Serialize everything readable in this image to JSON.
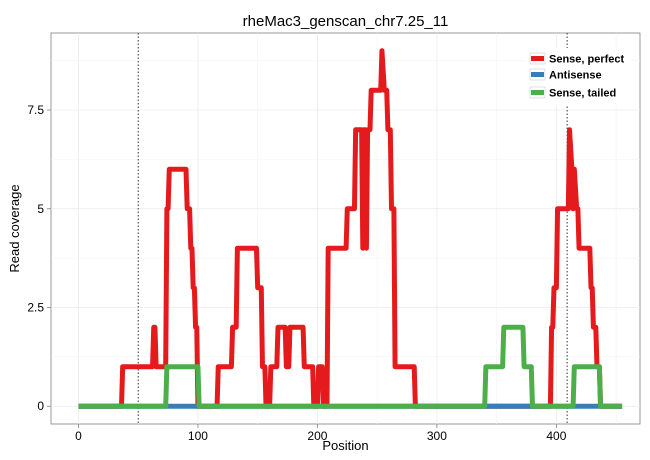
{
  "chart_data": {
    "type": "line",
    "title": "rheMac3_genscan_chr7.25_11",
    "xlabel": "Position",
    "ylabel": "Read coverage",
    "xlim": [
      -23,
      470
    ],
    "ylim": [
      -0.45,
      9.45
    ],
    "x_ticks": [
      0,
      100,
      200,
      300,
      400
    ],
    "x_tick_labels": [
      "0",
      "100",
      "200",
      "300",
      "400"
    ],
    "y_ticks": [
      0,
      2.5,
      5,
      7.5
    ],
    "y_tick_labels": [
      "0",
      "2.5",
      "5",
      "7.5"
    ],
    "grid": true,
    "legend_position": "top-right",
    "vlines": [
      50,
      409
    ],
    "series": [
      {
        "name": "Sense, perfect",
        "color": "#E41A1C",
        "points": [
          [
            0,
            0
          ],
          [
            36,
            0
          ],
          [
            37,
            1
          ],
          [
            62,
            1
          ],
          [
            63,
            2
          ],
          [
            64,
            2
          ],
          [
            65,
            1
          ],
          [
            73,
            1
          ],
          [
            74,
            5
          ],
          [
            75,
            5
          ],
          [
            76,
            6
          ],
          [
            90,
            6
          ],
          [
            91,
            5
          ],
          [
            93,
            5
          ],
          [
            94,
            4
          ],
          [
            95,
            4
          ],
          [
            96,
            3
          ],
          [
            97,
            3
          ],
          [
            98,
            2
          ],
          [
            99,
            2
          ],
          [
            100,
            0
          ],
          [
            116,
            0
          ],
          [
            117,
            1
          ],
          [
            128,
            1
          ],
          [
            129,
            2
          ],
          [
            132,
            2
          ],
          [
            133,
            4
          ],
          [
            149,
            4
          ],
          [
            150,
            3
          ],
          [
            153,
            3
          ],
          [
            154,
            1
          ],
          [
            156,
            1
          ],
          [
            157,
            0
          ],
          [
            160,
            0
          ],
          [
            161,
            1
          ],
          [
            166,
            1
          ],
          [
            167,
            2
          ],
          [
            173,
            2
          ],
          [
            174,
            1
          ],
          [
            176,
            1
          ],
          [
            177,
            2
          ],
          [
            188,
            2
          ],
          [
            189,
            1
          ],
          [
            196,
            1
          ],
          [
            197,
            0
          ],
          [
            200,
            0
          ],
          [
            201,
            1
          ],
          [
            204,
            1
          ],
          [
            205,
            0
          ],
          [
            208,
            0
          ],
          [
            209,
            4
          ],
          [
            224,
            4
          ],
          [
            225,
            5
          ],
          [
            231,
            5
          ],
          [
            232,
            7
          ],
          [
            237,
            7
          ],
          [
            238,
            4
          ],
          [
            239,
            7
          ],
          [
            240,
            7
          ],
          [
            241,
            4
          ],
          [
            242,
            7
          ],
          [
            244,
            7
          ],
          [
            245,
            8
          ],
          [
            253,
            8
          ],
          [
            254,
            9
          ],
          [
            256,
            8
          ],
          [
            258,
            8
          ],
          [
            259,
            7
          ],
          [
            261,
            7
          ],
          [
            262,
            5
          ],
          [
            264,
            5
          ],
          [
            265,
            1
          ],
          [
            281,
            1
          ],
          [
            282,
            0
          ],
          [
            395,
            0
          ],
          [
            396,
            2
          ],
          [
            397,
            2
          ],
          [
            398,
            3
          ],
          [
            400,
            3
          ],
          [
            401,
            5
          ],
          [
            410,
            5
          ],
          [
            411,
            7
          ],
          [
            413,
            6
          ],
          [
            414,
            5
          ],
          [
            415,
            6
          ],
          [
            417,
            5
          ],
          [
            418,
            5
          ],
          [
            419,
            4
          ],
          [
            428,
            4
          ],
          [
            429,
            3
          ],
          [
            430,
            3
          ],
          [
            431,
            2
          ],
          [
            433,
            2
          ],
          [
            434,
            1
          ],
          [
            436,
            1
          ],
          [
            437,
            0
          ],
          [
            455,
            0
          ]
        ]
      },
      {
        "name": "Antisense",
        "color": "#377EB8",
        "points": [
          [
            0,
            0
          ],
          [
            455,
            0
          ]
        ]
      },
      {
        "name": "Sense, tailed",
        "color": "#4DAF4A",
        "points": [
          [
            0,
            0
          ],
          [
            73,
            0
          ],
          [
            74,
            1
          ],
          [
            100,
            1
          ],
          [
            101,
            0
          ],
          [
            340,
            0
          ],
          [
            341,
            1
          ],
          [
            355,
            1
          ],
          [
            356,
            2
          ],
          [
            372,
            2
          ],
          [
            373,
            1
          ],
          [
            379,
            1
          ],
          [
            380,
            0
          ],
          [
            414,
            0
          ],
          [
            415,
            1
          ],
          [
            436,
            1
          ],
          [
            437,
            0
          ],
          [
            455,
            0
          ]
        ]
      }
    ]
  }
}
